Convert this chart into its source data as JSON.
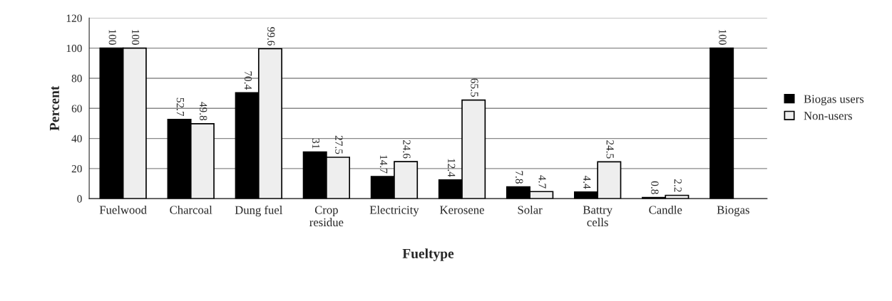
{
  "chart_data": {
    "type": "bar",
    "xlabel": "Fueltype",
    "ylabel": "Percent",
    "categories": [
      "Fuelwood",
      "Charcoal",
      "Dung fuel",
      "Crop\nresidue",
      "Electricity",
      "Kerosene",
      "Solar",
      "Battry\ncells",
      "Candle",
      "Biogas"
    ],
    "series": [
      {
        "name": "Biogas users",
        "color": "#000000",
        "values": [
          100,
          52.7,
          70.4,
          31,
          14.7,
          12.4,
          7.8,
          4.4,
          0.8,
          100
        ]
      },
      {
        "name": "Non-users",
        "color": "#eeeeee",
        "values": [
          100,
          49.8,
          99.6,
          27.5,
          24.6,
          65.5,
          4.7,
          24.5,
          2.2,
          null
        ]
      }
    ],
    "ylim": [
      0,
      120
    ],
    "yticks": [
      0,
      20,
      40,
      60,
      80,
      100,
      120
    ],
    "grid": "y",
    "legend": "right",
    "data_labels": true
  }
}
